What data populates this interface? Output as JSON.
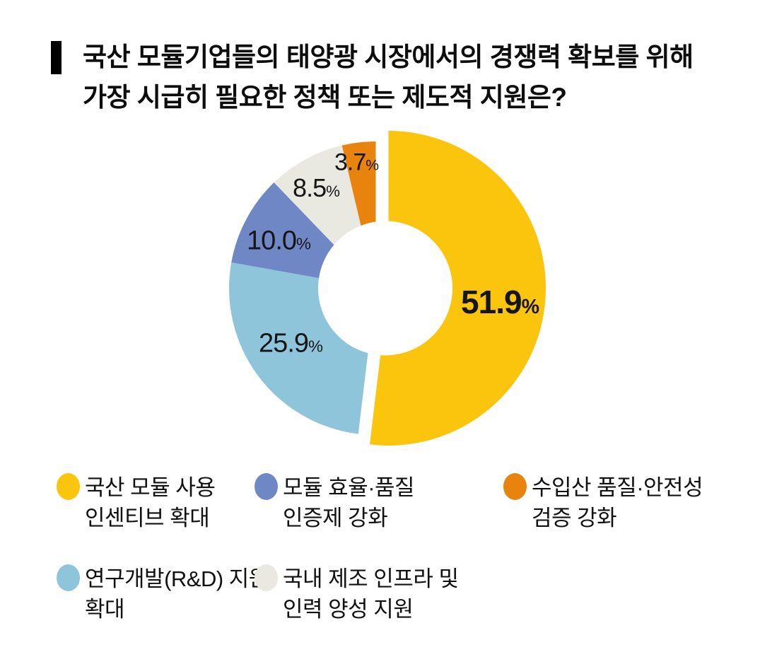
{
  "title": {
    "line1": "국산 모듈기업들의 태양광 시장에서의 경쟁력 확보를 위해",
    "line2": "가장 시급히 필요한 정책 또는 제도적 지원은?"
  },
  "colors": {
    "yellow": "#FBC40D",
    "sky_blue": "#8EC5DA",
    "periwinkle": "#6F88C5",
    "light_gray": "#E9E8E1",
    "orange": "#E8830D",
    "label_text": "#161616",
    "background": "#FFFFFF"
  },
  "chart_data": {
    "type": "pie",
    "subtype": "donut",
    "title": "국산 모듈기업들의 태양광 시장에서의 경쟁력 확보를 위해 가장 시급히 필요한 정책 또는 제도적 지원은?",
    "unit": "%",
    "legend_position": "bottom",
    "start_angle_deg": 0,
    "direction": "clockwise",
    "slices": [
      {
        "label": "국산 모듈 사용 인센티브 확대",
        "value": 51.9,
        "value_label": "51.9",
        "color": "#FBC40D",
        "exploded": true
      },
      {
        "label": "연구개발(R&D) 지원 확대",
        "value": 25.9,
        "value_label": "25.9",
        "color": "#8EC5DA",
        "exploded": false
      },
      {
        "label": "모듈 효율·품질 인증제 강화",
        "value": 10.0,
        "value_label": "10.0",
        "color": "#6F88C5",
        "exploded": false
      },
      {
        "label": "국내 제조 인프라 및 인력 양성 지원",
        "value": 8.5,
        "value_label": "8.5",
        "color": "#E9E8E1",
        "exploded": false
      },
      {
        "label": "수입산 품질·안전성 검증 강화",
        "value": 3.7,
        "value_label": "3.7",
        "color": "#E8830D",
        "exploded": false
      }
    ]
  },
  "legend": {
    "items": [
      {
        "lines": [
          "국산 모듈 사용",
          "인센티브 확대"
        ],
        "color": "#FBC40D",
        "row": 0,
        "col": 0
      },
      {
        "lines": [
          "모듈 효율·품질",
          "인증제 강화"
        ],
        "color": "#6F88C5",
        "row": 0,
        "col": 1
      },
      {
        "lines": [
          "수입산 품질·안전성",
          "검증 강화"
        ],
        "color": "#E8830D",
        "row": 0,
        "col": 2
      },
      {
        "lines": [
          "연구개발(R&D) 지원",
          "확대"
        ],
        "color": "#8EC5DA",
        "row": 1,
        "col": 0
      },
      {
        "lines": [
          "국내 제조 인프라 및",
          "인력 양성 지원"
        ],
        "color": "#E9E8E1",
        "row": 1,
        "col": 1
      }
    ]
  }
}
